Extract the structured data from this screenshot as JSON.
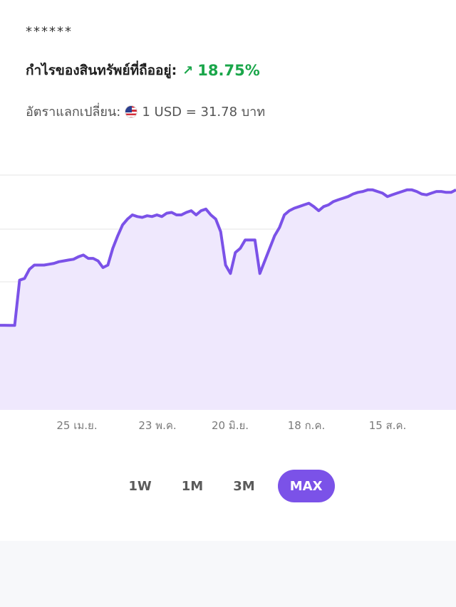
{
  "header": {
    "masked": "******",
    "profit_label": "กำไรของสินทรัพย์ที่ถืออยู่:",
    "profit_arrow": "↗",
    "profit_value": "18.75%",
    "rate_label": "อัตราแลกเปลี่ยน:",
    "rate_value": "1 USD = 31.78 บาท",
    "profit_color": "#1aa64a"
  },
  "chart_data": {
    "type": "area",
    "line_color": "#7b52e8",
    "fill_color": "#efe8fd",
    "grid": true,
    "x_tick_labels": [
      "25 เม.ย.",
      "23 พ.ค.",
      "20 มิ.ย.",
      "18 ก.ค.",
      "15 ส.ค."
    ],
    "values": [
      0.28,
      0.28,
      0.278,
      0.278,
      0.82,
      0.84,
      0.95,
      1.0,
      1.0,
      1.0,
      1.01,
      1.02,
      1.04,
      1.05,
      1.06,
      1.07,
      1.1,
      1.12,
      1.08,
      1.08,
      1.05,
      0.97,
      1.0,
      1.2,
      1.35,
      1.48,
      1.55,
      1.6,
      1.58,
      1.57,
      1.59,
      1.58,
      1.6,
      1.58,
      1.62,
      1.63,
      1.6,
      1.6,
      1.63,
      1.65,
      1.6,
      1.65,
      1.67,
      1.6,
      1.55,
      1.4,
      1.0,
      0.9,
      1.15,
      1.2,
      1.3,
      1.3,
      1.3,
      0.9,
      1.05,
      1.2,
      1.35,
      1.45,
      1.6,
      1.65,
      1.68,
      1.7,
      1.72,
      1.74,
      1.7,
      1.65,
      1.7,
      1.72,
      1.76,
      1.78,
      1.8,
      1.82,
      1.85,
      1.87,
      1.88,
      1.9,
      1.9,
      1.88,
      1.86,
      1.82,
      1.84,
      1.86,
      1.88,
      1.9,
      1.9,
      1.88,
      1.85,
      1.84,
      1.86,
      1.88,
      1.88,
      1.87,
      1.87,
      1.9
    ]
  },
  "ranges": [
    {
      "label": "1W",
      "active": false
    },
    {
      "label": "1M",
      "active": false
    },
    {
      "label": "3M",
      "active": false
    },
    {
      "label": "MAX",
      "active": true
    }
  ]
}
